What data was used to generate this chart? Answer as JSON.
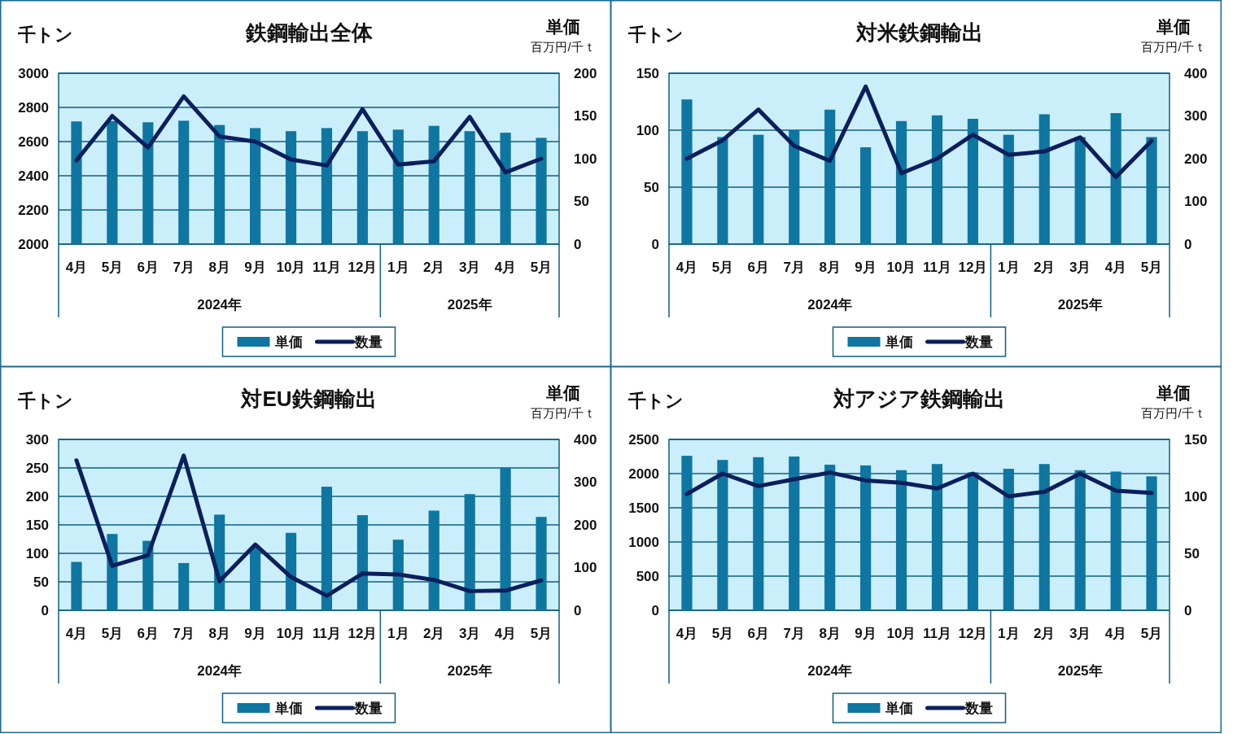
{
  "chart_data": [
    {
      "type": "bar",
      "title": "鉄鋼輸出全体",
      "ylabel": "千トン",
      "y2label": "単価",
      "categories": [
        "4月",
        "5月",
        "6月",
        "7月",
        "8月",
        "9月",
        "10月",
        "11月",
        "12月",
        "1月",
        "2月",
        "3月",
        "4月",
        "5月"
      ],
      "annotations": [
        "2024年",
        "2025年",
        "百万円/千ｔ"
      ],
      "series": [
        {
          "name": "単価",
          "color": "#0e76a0",
          "values": [
            2718,
            2720,
            2713,
            2722,
            2697,
            2679,
            2661,
            2679,
            2661,
            2670,
            2692,
            2661,
            2652,
            2622
          ]
        },
        {
          "name": "数量",
          "type": "line",
          "axis": "y2",
          "color": "#0b1f5c",
          "values": [
            98,
            150,
            113,
            173,
            126,
            120,
            99,
            92,
            158,
            93,
            97,
            149,
            84,
            100
          ]
        }
      ],
      "ylim": [
        2000,
        3000
      ],
      "yticks": [
        2000,
        2200,
        2400,
        2600,
        2800,
        3000
      ],
      "y2lim": [
        0,
        200
      ],
      "y2ticks": [
        0,
        50,
        100,
        150,
        200
      ],
      "grid": "y",
      "legend": "bottom",
      "marker": "none"
    },
    {
      "type": "bar",
      "title": "対米鉄鋼輸出",
      "ylabel": "千トン",
      "y2label": "単価",
      "categories": [
        "4月",
        "5月",
        "6月",
        "7月",
        "8月",
        "9月",
        "10月",
        "11月",
        "12月",
        "1月",
        "2月",
        "3月",
        "4月",
        "5月"
      ],
      "annotations": [
        "2024年",
        "2025年",
        "百万円/千ｔ"
      ],
      "series": [
        {
          "name": "単価",
          "color": "#0e76a0",
          "values": [
            127,
            94,
            96,
            100,
            118,
            85,
            108,
            113,
            110,
            96,
            114,
            94,
            115,
            94
          ]
        },
        {
          "name": "数量",
          "type": "line",
          "axis": "y2",
          "color": "#0b1f5c",
          "values": [
            200,
            243,
            315,
            230,
            195,
            369,
            166,
            200,
            256,
            209,
            217,
            250,
            157,
            242
          ]
        }
      ],
      "ylim": [
        0,
        150
      ],
      "yticks": [
        0,
        50,
        100,
        150
      ],
      "y2lim": [
        0,
        400
      ],
      "y2ticks": [
        0,
        100,
        200,
        300,
        400
      ],
      "grid": "y",
      "legend": "bottom",
      "marker": "none"
    },
    {
      "type": "bar",
      "title": "対EU鉄鋼輸出",
      "ylabel": "千トン",
      "y2label": "単価",
      "categories": [
        "4月",
        "5月",
        "6月",
        "7月",
        "8月",
        "9月",
        "10月",
        "11月",
        "12月",
        "1月",
        "2月",
        "3月",
        "4月",
        "5月"
      ],
      "annotations": [
        "2024年",
        "2025年",
        "百万円/千ｔ"
      ],
      "series": [
        {
          "name": "単価",
          "color": "#0e76a0",
          "values": [
            85,
            134,
            122,
            83,
            168,
            110,
            136,
            217,
            167,
            124,
            175,
            204,
            250,
            164
          ]
        },
        {
          "name": "数量",
          "type": "line",
          "axis": "y2",
          "color": "#0b1f5c",
          "values": [
            351,
            104,
            129,
            362,
            68,
            154,
            78,
            34,
            86,
            84,
            71,
            45,
            46,
            70
          ]
        }
      ],
      "ylim": [
        0,
        300
      ],
      "yticks": [
        0,
        50,
        100,
        150,
        200,
        250,
        300
      ],
      "y2lim": [
        0,
        400
      ],
      "y2ticks": [
        0,
        100,
        200,
        300,
        400
      ],
      "grid": "y",
      "legend": "bottom",
      "marker": "none"
    },
    {
      "type": "bar",
      "title": "対アジア鉄鋼輸出",
      "ylabel": "千トン",
      "y2label": "単価",
      "categories": [
        "4月",
        "5月",
        "6月",
        "7月",
        "8月",
        "9月",
        "10月",
        "11月",
        "12月",
        "1月",
        "2月",
        "3月",
        "4月",
        "5月"
      ],
      "annotations": [
        "2024年",
        "2025年",
        "百万円/千ｔ"
      ],
      "series": [
        {
          "name": "単価",
          "color": "#0e76a0",
          "values": [
            2260,
            2200,
            2240,
            2250,
            2130,
            2120,
            2050,
            2140,
            2020,
            2070,
            2140,
            2050,
            2030,
            1960
          ]
        },
        {
          "name": "数量",
          "type": "line",
          "axis": "y2",
          "color": "#0b1f5c",
          "values": [
            102,
            120,
            109,
            115,
            121,
            114,
            112,
            107,
            120,
            100,
            104,
            120,
            105,
            103
          ]
        }
      ],
      "ylim": [
        0,
        2500
      ],
      "yticks": [
        0,
        500,
        1000,
        1500,
        2000,
        2500
      ],
      "y2lim": [
        0,
        150
      ],
      "y2ticks": [
        0,
        50,
        100,
        150
      ],
      "grid": "y",
      "legend": "bottom",
      "marker": "none"
    }
  ]
}
